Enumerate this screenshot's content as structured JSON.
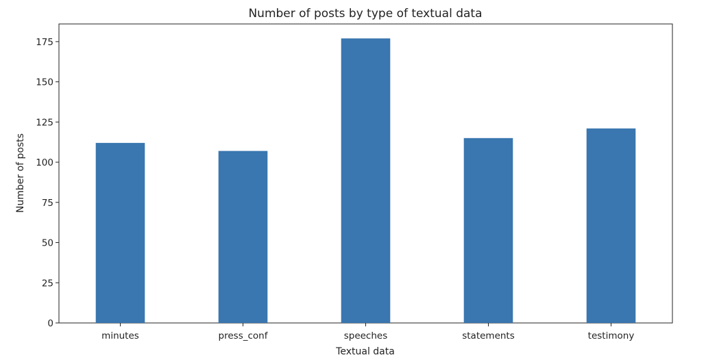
{
  "chart_data": {
    "type": "bar",
    "title": "Number of posts by type of textual data",
    "xlabel": "Textual data",
    "ylabel": "Number of posts",
    "categories": [
      "minutes",
      "press_conf",
      "speeches",
      "statements",
      "testimony"
    ],
    "values": [
      112,
      107,
      177,
      115,
      121
    ],
    "ylim": [
      0,
      186
    ],
    "yticks": [
      0,
      25,
      50,
      75,
      100,
      125,
      150,
      175
    ],
    "ytick_labels": [
      "0",
      "25",
      "50",
      "75",
      "100",
      "125",
      "150",
      "175"
    ],
    "grid": false,
    "legend": "none",
    "colors": {
      "bar": "#3a76af",
      "axis": "#222222",
      "background": "#ffffff"
    }
  }
}
